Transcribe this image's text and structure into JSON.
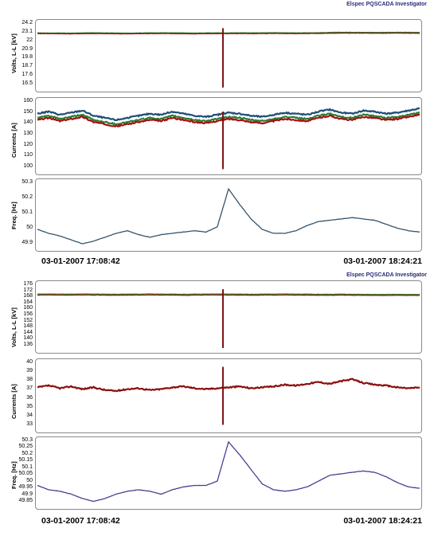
{
  "chart_data": [
    {
      "type": "line",
      "brand": "Elspec PQSCADA Investigator",
      "start_time": "03-01-2007 17:08:42",
      "end_time": "03-01-2007 18:24:21",
      "panels": [
        {
          "ylabel": "Volts, L-L [kV]",
          "ticks": [
            "24.2",
            "23.1",
            "22",
            "20.9",
            "19.8",
            "18.7",
            "17.6",
            "16.5"
          ],
          "ylim": [
            16.5,
            24.2
          ],
          "series": [
            {
              "color": "#2e7d32",
              "values": [
                23.05,
                23.03,
                23.04,
                23.02,
                23.05,
                23.06,
                23.04,
                23.03,
                23.02,
                23.04,
                23.05,
                23.06,
                23.05,
                23.04,
                23.03,
                23.04,
                23.05,
                23.04,
                23.06,
                23.05,
                23.06,
                23.07,
                23.06,
                23.05,
                23.06,
                23.07,
                23.1,
                23.12,
                23.11,
                23.12,
                23.1,
                23.11,
                23.12,
                23.11,
                23.1
              ]
            },
            {
              "color": "#a11212",
              "values": [
                22.95,
                22.96,
                22.94,
                22.93,
                22.95,
                22.96,
                22.95,
                22.94,
                22.93,
                22.95,
                22.96,
                22.97,
                22.95,
                22.94,
                22.93,
                22.95,
                22.96,
                22.95,
                22.97,
                22.96,
                22.96,
                22.98,
                22.97,
                22.96,
                22.97,
                22.98,
                23.0,
                23.02,
                23.01,
                23.02,
                23.0,
                23.01,
                23.02,
                23.01,
                23.0
              ]
            }
          ],
          "event": {
            "index": 16.5,
            "min": 16.6,
            "max": 23.6
          }
        },
        {
          "ylabel": "Currents [A]",
          "ticks": [
            "160",
            "150",
            "140",
            "130",
            "120",
            "110",
            "100"
          ],
          "ylim": [
            95,
            162
          ],
          "series": [
            {
              "color": "#1f4e79",
              "values": [
                150,
                152,
                149,
                151,
                153,
                148,
                146,
                144,
                146,
                148,
                150,
                149,
                152,
                150,
                148,
                147,
                149,
                151,
                150,
                148,
                147,
                149,
                151,
                150,
                149,
                152,
                154,
                151,
                150,
                153,
                152,
                150,
                151,
                153,
                155
              ]
            },
            {
              "color": "#2e7d32",
              "values": [
                146,
                148,
                145,
                147,
                149,
                144,
                142,
                140,
                142,
                144,
                146,
                145,
                148,
                146,
                144,
                143,
                145,
                147,
                146,
                144,
                143,
                145,
                147,
                146,
                145,
                148,
                150,
                147,
                146,
                149,
                148,
                146,
                147,
                149,
                151
              ]
            },
            {
              "color": "#a11212",
              "values": [
                144,
                146,
                143,
                145,
                147,
                142,
                140,
                138,
                140,
                142,
                144,
                143,
                146,
                144,
                142,
                141,
                143,
                145,
                144,
                142,
                141,
                143,
                145,
                144,
                143,
                146,
                148,
                145,
                144,
                147,
                146,
                144,
                145,
                147,
                149
              ]
            }
          ],
          "event": {
            "index": 16.5,
            "min": 97,
            "max": 152
          }
        },
        {
          "ylabel": "Freq. [Hz]",
          "ticks": [
            "50.3",
            "50.2",
            "50.1",
            "50",
            "49.9"
          ],
          "ylim": [
            49.85,
            50.35
          ],
          "series": [
            {
              "color": "#33546b",
              "values": [
                49.99,
                49.96,
                49.94,
                49.91,
                49.88,
                49.9,
                49.93,
                49.96,
                49.98,
                49.95,
                49.93,
                49.95,
                49.96,
                49.97,
                49.98,
                49.97,
                50.01,
                50.3,
                50.18,
                50.07,
                49.99,
                49.96,
                49.96,
                49.98,
                50.02,
                50.05,
                50.06,
                50.07,
                50.08,
                50.07,
                50.06,
                50.03,
                50.0,
                49.98,
                49.97
              ]
            }
          ]
        }
      ]
    },
    {
      "type": "line",
      "brand": "Elspec PQSCADA Investigator",
      "start_time": "03-01-2007 17:08:42",
      "end_time": "03-01-2007 18:24:21",
      "panels": [
        {
          "ylabel": "Volts, L-L [kV]",
          "ticks": [
            "176",
            "172",
            "168",
            "164",
            "160",
            "156",
            "152",
            "148",
            "144",
            "140",
            "136"
          ],
          "ylim": [
            136,
            176
          ],
          "series": [
            {
              "color": "#2e7d32",
              "values": [
                170,
                170.1,
                170,
                170,
                170.1,
                170,
                170,
                169.9,
                170,
                170,
                170.1,
                170,
                170,
                169.9,
                170,
                170,
                170.1,
                170,
                170,
                169.9,
                170,
                170,
                170.1,
                170,
                170,
                169.9,
                169.9,
                170,
                169.9,
                169.9,
                169.8,
                169.8,
                169.9,
                169.8,
                169.8
              ]
            },
            {
              "color": "#a11212",
              "values": [
                169.4,
                169.5,
                169.4,
                169.4,
                169.5,
                169.4,
                169.4,
                169.3,
                169.4,
                169.4,
                169.5,
                169.4,
                169.4,
                169.3,
                169.4,
                169.4,
                169.5,
                169.4,
                169.4,
                169.3,
                169.4,
                169.4,
                169.5,
                169.4,
                169.4,
                169.3,
                169.3,
                169.4,
                169.3,
                169.3,
                169.2,
                169.2,
                169.3,
                169.2,
                169.2
              ]
            }
          ],
          "event": {
            "index": 16.5,
            "min": 137,
            "max": 173
          }
        },
        {
          "ylabel": "Currents [A]",
          "ticks": [
            "40",
            "39",
            "38",
            "37",
            "36",
            "35",
            "34",
            "33"
          ],
          "ylim": [
            32.5,
            40
          ],
          "series": [
            {
              "color": "#8b0f0f",
              "values": [
                37.2,
                37.4,
                37.1,
                37.3,
                37.0,
                37.2,
                36.9,
                36.8,
                37.0,
                37.1,
                36.9,
                37.0,
                37.2,
                37.3,
                37.1,
                37.0,
                37.1,
                37.2,
                37.3,
                37.1,
                37.2,
                37.3,
                37.5,
                37.4,
                37.6,
                37.8,
                37.6,
                37.9,
                38.1,
                37.7,
                37.5,
                37.4,
                37.2,
                37.1,
                37.2
              ]
            }
          ],
          "event": {
            "index": 16.5,
            "min": 33.0,
            "max": 39.5
          }
        },
        {
          "ylabel": "Freq. [Hz]",
          "ticks": [
            "50.3",
            "50.25",
            "50.2",
            "50.15",
            "50.1",
            "50.05",
            "50",
            "49.95",
            "49.9",
            "49.85"
          ],
          "ylim": [
            49.85,
            50.3
          ],
          "series": [
            {
              "color": "#4a3f8f",
              "values": [
                49.99,
                49.96,
                49.95,
                49.93,
                49.9,
                49.88,
                49.9,
                49.93,
                49.95,
                49.96,
                49.95,
                49.93,
                49.96,
                49.98,
                49.99,
                49.99,
                50.02,
                50.29,
                50.2,
                50.1,
                50.0,
                49.96,
                49.95,
                49.96,
                49.98,
                50.02,
                50.06,
                50.07,
                50.08,
                50.09,
                50.08,
                50.05,
                50.01,
                49.98,
                49.97
              ]
            }
          ]
        }
      ]
    }
  ]
}
